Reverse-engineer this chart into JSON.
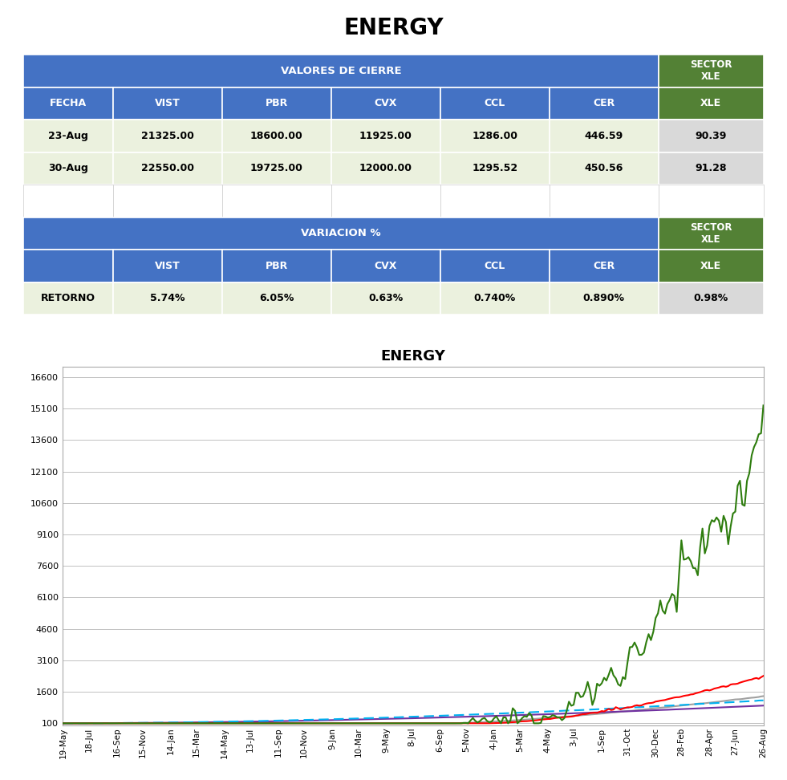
{
  "title": "ENERGY",
  "header_blue": "#4472C4",
  "header_green": "#538135",
  "row_bg_light": "#EBF1DE",
  "row_bg_gray": "#D9D9D9",
  "table1_header_main": "VALORES DE CIERRE",
  "table1_col_headers": [
    "FECHA",
    "VIST",
    "PBR",
    "CVX",
    "CCL",
    "CER",
    "XLE"
  ],
  "table1_rows": [
    [
      "23-Aug",
      "21325.00",
      "18600.00",
      "11925.00",
      "1286.00",
      "446.59",
      "90.39"
    ],
    [
      "30-Aug",
      "22550.00",
      "19725.00",
      "12000.00",
      "1295.52",
      "450.56",
      "91.28"
    ]
  ],
  "table2_header_main": "VARIACION %",
  "table2_col_headers": [
    "",
    "VIST",
    "PBR",
    "CVX",
    "CCL",
    "CER",
    "XLE"
  ],
  "table2_rows": [
    [
      "RETORNO",
      "5.74%",
      "6.05%",
      "0.63%",
      "0.740%",
      "0.890%",
      "0.98%"
    ]
  ],
  "chart_title": "ENERGY",
  "x_labels": [
    "19-May",
    "18-Jul",
    "16-Sep",
    "15-Nov",
    "14-Jan",
    "15-Mar",
    "14-May",
    "13-Jul",
    "11-Sep",
    "10-Nov",
    "9-Jan",
    "10-Mar",
    "9-May",
    "8-Jul",
    "6-Sep",
    "5-Nov",
    "4-Jan",
    "5-Mar",
    "4-May",
    "3-Jul",
    "1-Sep",
    "31-Oct",
    "30-Dec",
    "28-Feb",
    "28-Apr",
    "27-Jun",
    "26-Aug"
  ],
  "y_ticks": [
    100,
    1600,
    3100,
    4600,
    6100,
    7600,
    9100,
    10600,
    12100,
    13600,
    15100,
    16600
  ],
  "series_colors": {
    "VIST": "#2E7D0E",
    "PBR": "#FF0000",
    "CVX": "#A0A0A0",
    "CCL": "#7030A0",
    "CER": "#00B0F0"
  }
}
